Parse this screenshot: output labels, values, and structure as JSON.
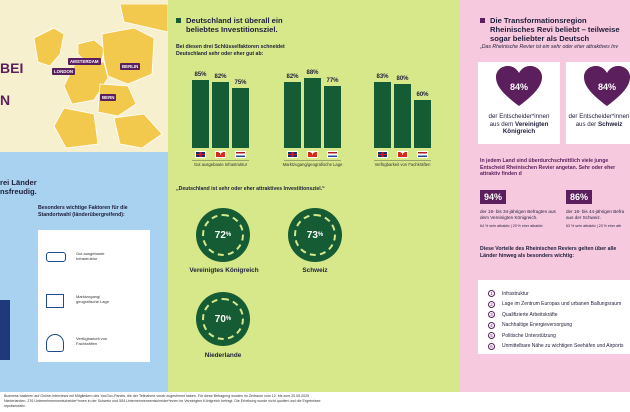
{
  "left_panel": {
    "partial_heading_1": "BEI",
    "partial_heading_2": "N",
    "cities": [
      "AMSTERDAM",
      "LONDON",
      "BERLIN",
      "BERN"
    ],
    "blue_title_partial": "rei Länder\nnsfreudig.",
    "factors_title": "Besonders wichtige Faktoren für die Standortwahl (länderübergreifend):",
    "factors": [
      {
        "icon": "car-icon",
        "text": "Gut ausgebaute Infrastruktur"
      },
      {
        "icon": "map-icon",
        "text": "Marktzugang/ geografische Lage"
      },
      {
        "icon": "people-icon",
        "text": "Verfügbarkeit von Fachkräften"
      }
    ]
  },
  "middle_panel": {
    "title": "Deutschland ist überall ein beliebtes Investitionsziel.",
    "chart_subtitle": "Bei diesen drei Schlüsselfaktoren schneidet Deutschland sehr oder eher gut ab:",
    "rings_subtitle": "„Deutschland ist sehr oder eher attraktives Investitionsziel.“",
    "rings": [
      {
        "value": "72",
        "unit": "%",
        "label": "Vereinigtes Königreich"
      },
      {
        "value": "73",
        "unit": "%",
        "label": "Schweiz"
      },
      {
        "value": "70",
        "unit": "%",
        "label": "Niederlande"
      }
    ]
  },
  "chart_data": {
    "type": "bar",
    "title": "",
    "categories": [
      "Gut ausgebaute Infrastruktur",
      "Marktzugang/geografische Lage",
      "Verfügbarkeit von Fachkräften"
    ],
    "series": [
      {
        "name": "Vereinigtes Königreich",
        "values": [
          85,
          82,
          83
        ]
      },
      {
        "name": "Schweiz",
        "values": [
          82,
          88,
          80
        ]
      },
      {
        "name": "Niederlande",
        "values": [
          75,
          77,
          60
        ]
      }
    ],
    "unit": "%",
    "ylim": [
      0,
      100
    ],
    "colors": {
      "bar": "#155c34"
    }
  },
  "right_panel": {
    "title": "Die Transformationsregion Rheinisches Revi beliebt – teilweise sogar beliebter als Deutsch",
    "subtitle": "„Das Rheinische Revier ist ein sehr oder eher attraktives Inv",
    "hearts": [
      {
        "value": "84%",
        "caption_1": "der Entscheider*innen",
        "caption_2": "aus dem ",
        "caption_bold": "Vereinigten Königreich"
      },
      {
        "value": "84%",
        "caption_1": "der Entscheider*innen",
        "caption_2": "aus der ",
        "caption_bold": "Schweiz"
      }
    ],
    "youth_text": "In jedem Land sind überdurchschnittlich viele junge Entscheid Rheinischen Revier angetan. Sehr oder eher attraktiv finden d",
    "stats": [
      {
        "value": "94%",
        "text": "der 18- bis 34-jährigen Befragten aus dem Vereinigten Königreich.",
        "note": "64 % sehr attraktiv | 29 % eher attraktiv"
      },
      {
        "value": "86%",
        "text": "der 18- bis 44-jährigen Befra aus der Schweiz.",
        "note": "63 % sehr attraktiv | 23 % eher attr"
      }
    ],
    "advantages_title": "Diese Vorteile des Rheinischen Reviers gelten über alle Länder hinweg als besonders wichtig:",
    "advantages": [
      "Infrastruktur",
      "Lage im Zentrum Europas und urbanen Ballungsraum",
      "Qualifizierte Arbeitskräfte",
      "Nachhaltige Energieversorgung",
      "Politische Unterstützung",
      "Unmittelbare Nähe zu wichtigen Seehäfen und Airports"
    ]
  },
  "footer": {
    "line1": "Business basieren auf Online-Interviews mit Mitgliedern des YouGov-Panels, die der Teilnahme vorab zugestimmt haben. Für diese Befragung wurden im Zeitraum vom 12. bis zum 20.05.2025",
    "line2": "Niederlanden, 276 Unternehmensentscheider*innen in der Schweiz und 554 Unternehmensentscheider*innen im Vereinigten Königreich befragt. Die Erhebung wurde nicht quotiert und die Ergebnisse",
    "line3": "repräsentativ."
  }
}
